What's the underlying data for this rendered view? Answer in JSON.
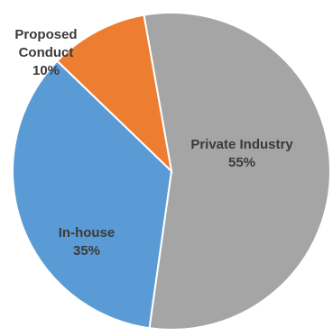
{
  "chart_data": {
    "type": "pie",
    "title": "",
    "slices": [
      {
        "name_lines": [
          "Private Industry"
        ],
        "value": 55,
        "value_label": "55%",
        "color": "#a5a5a5"
      },
      {
        "name_lines": [
          "In-house"
        ],
        "value": 35,
        "value_label": "35%",
        "color": "#5b9bd5"
      },
      {
        "name_lines": [
          "Proposed",
          "Conduct"
        ],
        "value": 10,
        "value_label": "10%",
        "color": "#ed7d31"
      }
    ],
    "start_angle_deg": -10,
    "direction": "clockwise",
    "slice_border_color": "#ffffff"
  }
}
